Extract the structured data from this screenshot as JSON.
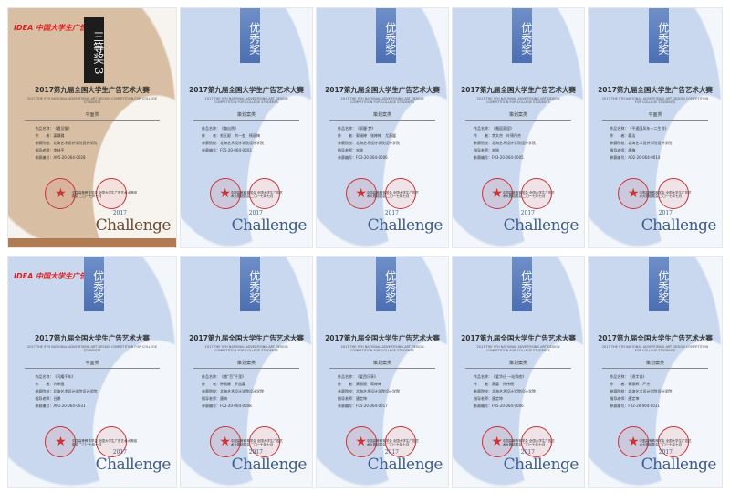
{
  "organizer_logo": "IDEA 中国大学生广告节",
  "contest_title": "2017第九届全国大学生广告艺术大赛",
  "contest_subtitle": "2017 THE 9TH NATIONAL ADVERTISING ART DESIGN COMPETITION FOR COLLEGE STUDENTS",
  "labels": {
    "work": "作品名称：",
    "author": "作　　者：",
    "school": "参赛院校：",
    "advisor": "指导老师：",
    "code": "参赛编号："
  },
  "seal_text": "中国高等教育学会 全国大学生广告艺术大赛组委会 二〇一七年七月",
  "seal_star": "★",
  "brand": "Challenge",
  "brand_year": "2017",
  "colors": {
    "blue": "#c9d8ee",
    "bronze": "#d8bfa4",
    "seal": "#cc3333"
  },
  "certificates": [
    {
      "award": "三等奖 3",
      "style": "bronze",
      "category": "平面类",
      "work": "《遇见猫》",
      "author": "梁璐璐",
      "school": "北海艺术设计学院设计学院",
      "advisor": "李林平",
      "code": "A05-20-064-0028",
      "logo": true
    },
    {
      "award": "优秀奖",
      "style": "blue",
      "category": "策划案类",
      "work": "《趣自然》",
      "author": "毛玉妮　刘一玺　杨丽梅",
      "school": "北海艺术设计学院设计学院",
      "advisor": "",
      "code": "F05-20-064-0003"
    },
    {
      "award": "优秀奖",
      "style": "blue",
      "category": "策划案类",
      "work": "《醉醒·梦》",
      "author": "郭瑞婷　张婷婷　尤燕媛",
      "school": "北海艺术设计学院设计学院",
      "advisor": "宋刚",
      "code": "F03-20-064-0006"
    },
    {
      "award": "优秀奖",
      "style": "blue",
      "category": "策划案类",
      "work": "《邂逅家居》",
      "author": "李文杰　叶锦丹杰",
      "school": "北海艺术设计学院设计学院",
      "advisor": "宋刚",
      "code": "F03-20-064-0005"
    },
    {
      "award": "优秀奖",
      "style": "blue",
      "category": "平面类",
      "work": "《平遥国风年十二生肖》",
      "author": "戴洁",
      "school": "北海艺术设计学院设计学院",
      "advisor": "唐梅",
      "code": "A02-20-064-0014"
    },
    {
      "award": "优秀奖",
      "style": "blue",
      "category": "平面类",
      "work": "《闪耀千年》",
      "author": "许泽霞",
      "school": "北海艺术设计学院设计学院",
      "advisor": "吕娜",
      "code": "A01-20-064-0031",
      "logo": true
    },
    {
      "award": "优秀奖",
      "style": "blue",
      "category": "策划案类",
      "work": "《踏“百”千里》",
      "author": "钟丽娜　罗益嘉",
      "school": "北海艺术设计学院设计学院",
      "advisor": "唐梅",
      "code": "F02-20-064-0008"
    },
    {
      "award": "优秀奖",
      "style": "blue",
      "category": "策划案类",
      "work": "《爱西乐享》",
      "author": "黄丽丽　蒋婷婷",
      "school": "北海艺术设计学院设计学院",
      "advisor": "唐定坤",
      "code": "F05-20-064-0017"
    },
    {
      "award": "优秀奖",
      "style": "blue",
      "category": "策划案类",
      "work": "《爱华仕 一站到底》",
      "author": "黄蕾　孙伟瑶",
      "school": "北海艺术设计学院设计学院",
      "advisor": "唐定坤",
      "code": "F05-20-064-0006"
    },
    {
      "award": "优秀奖",
      "style": "blue",
      "category": "策划案类",
      "work": "《逐字说》",
      "author": "郭丽辉　严杰",
      "school": "北海艺术设计学院设计学院",
      "advisor": "唐定坤",
      "code": "F02-20-064-0011"
    }
  ]
}
